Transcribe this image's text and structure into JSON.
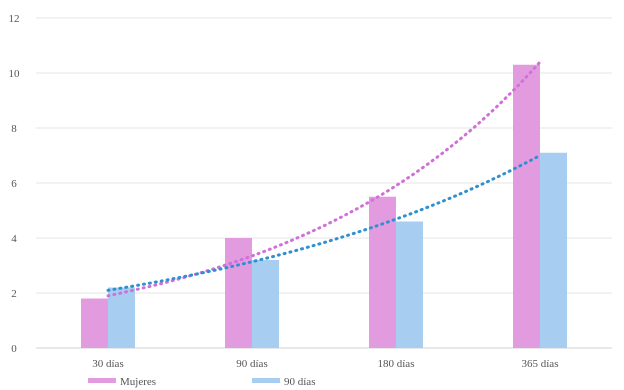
{
  "chart_data": {
    "type": "bar",
    "categories": [
      "30 días",
      "90 días",
      "180 días",
      "365 días"
    ],
    "series": [
      {
        "name": "Mujeres",
        "values": [
          1.8,
          4.0,
          5.5,
          10.3
        ],
        "color": "#e39be0"
      },
      {
        "name": "90 días",
        "values": [
          2.2,
          3.2,
          4.6,
          7.1
        ],
        "color": "#a7cdf0"
      }
    ],
    "trendlines": [
      {
        "series": "Mujeres",
        "kind": "exponential",
        "style": "dotted",
        "color": "#d070d8",
        "values": [
          1.9,
          3.1,
          5.3,
          10.4
        ]
      },
      {
        "series": "90 días",
        "kind": "exponential",
        "style": "dotted",
        "color": "#2f8fd0",
        "values": [
          2.1,
          3.0,
          4.3,
          7.0
        ]
      }
    ],
    "ylim": [
      0,
      12
    ],
    "yticks": [
      "0",
      "2",
      "4",
      "6",
      "8",
      "10",
      "12"
    ],
    "grid": true,
    "legend_position": "bottom-left",
    "title": "",
    "xlabel": "",
    "ylabel": ""
  }
}
